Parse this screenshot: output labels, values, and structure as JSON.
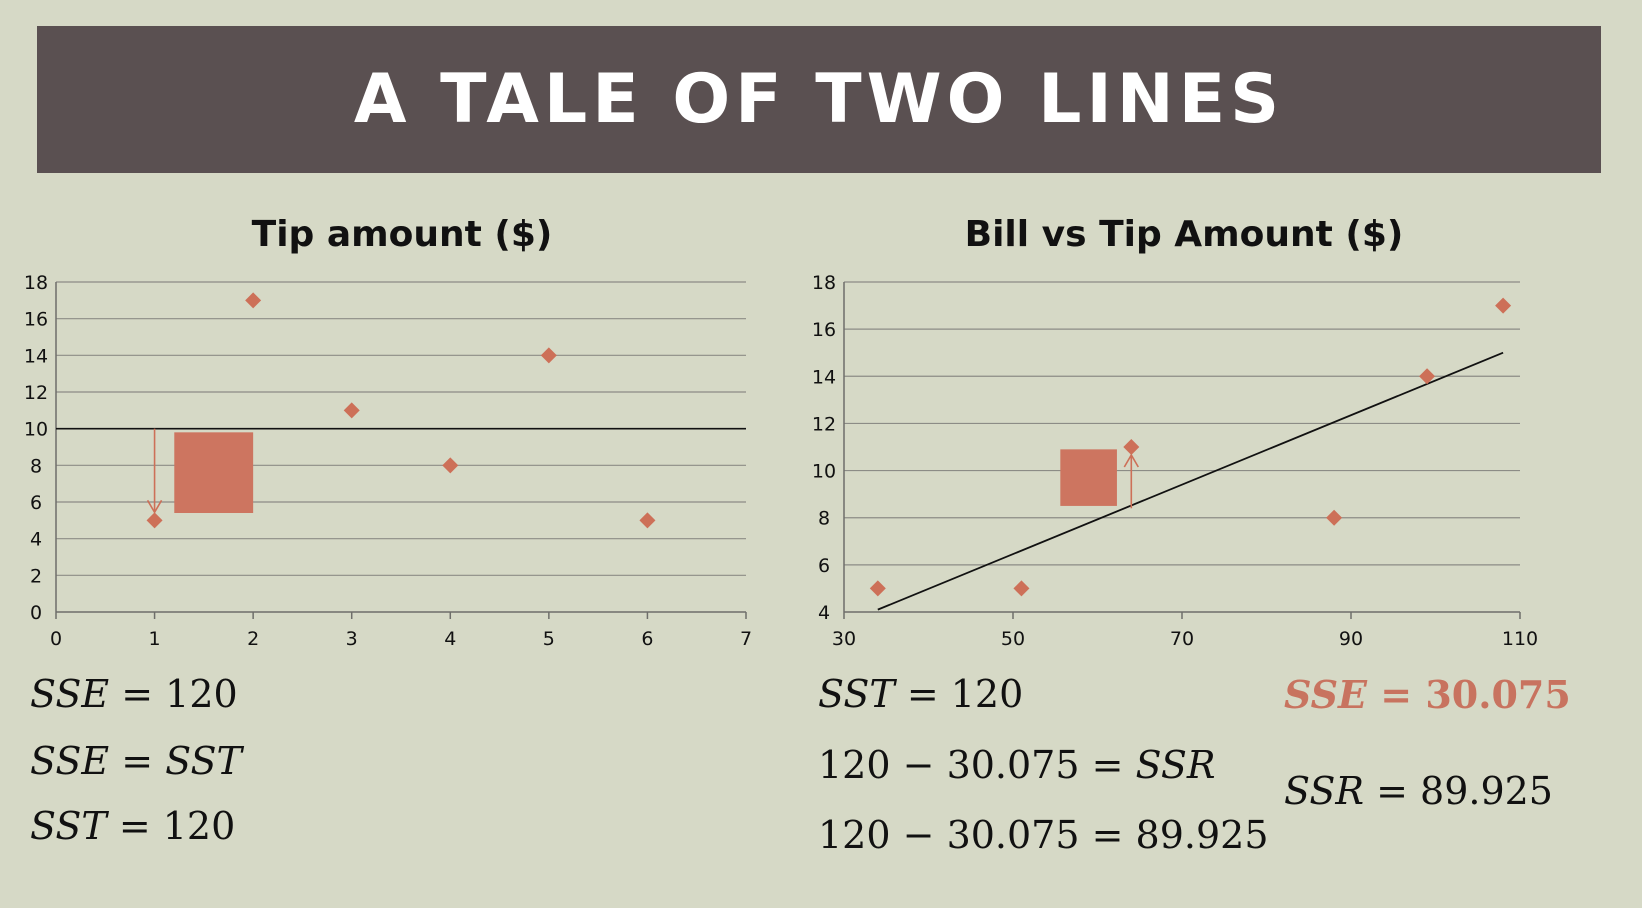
{
  "slide_title": "A TALE OF TWO LINES",
  "colors": {
    "marker": "#cd7058",
    "square": "#cd7560",
    "line": "#111111",
    "banner": "#5a5051",
    "highlight": "#c8735f"
  },
  "chart_data": [
    {
      "type": "scatter",
      "title": "Tip amount ($)",
      "x": [
        1,
        2,
        3,
        4,
        5,
        6
      ],
      "y": [
        5,
        17,
        11,
        8,
        14,
        5
      ],
      "xlim": [
        0,
        7
      ],
      "ylim": [
        0,
        18
      ],
      "xticks": [
        0,
        1,
        2,
        3,
        4,
        5,
        6,
        7
      ],
      "yticks": [
        0,
        2,
        4,
        6,
        8,
        10,
        12,
        14,
        16,
        18
      ],
      "grid": true,
      "reference_line": {
        "y": 10
      },
      "residual_arrow": {
        "x": 1,
        "from_y": 10,
        "to_y": 5
      },
      "residual_square": {
        "x0": 1.2,
        "x1": 2.0,
        "y0": 5.4,
        "y1": 9.8
      }
    },
    {
      "type": "scatter",
      "title": "Bill vs Tip Amount ($)",
      "x": [
        34,
        51,
        64,
        88,
        99,
        108
      ],
      "y": [
        5,
        5,
        11,
        8,
        14,
        17
      ],
      "xlim": [
        30,
        110
      ],
      "ylim": [
        4,
        18
      ],
      "xticks": [
        30,
        50,
        70,
        90,
        110
      ],
      "yticks": [
        4,
        6,
        8,
        10,
        12,
        14,
        16,
        18
      ],
      "grid": true,
      "fit_line": {
        "x0": 34,
        "y0": 4.1,
        "x1": 108,
        "y1": 15.0
      },
      "residual_arrow": {
        "x": 64,
        "from_y": 8.4,
        "to_y": 11
      },
      "residual_square": {
        "x0": 55.6,
        "x1": 62.3,
        "y0": 8.5,
        "y1": 10.9
      }
    }
  ],
  "equations": {
    "left": [
      {
        "lhs": "SSE",
        "rhs": "120"
      },
      {
        "lhs": "SSE",
        "rhs": "SST"
      },
      {
        "lhs": "SST",
        "rhs": "120"
      }
    ],
    "right": {
      "sst": {
        "lhs": "SST",
        "rhs": "120"
      },
      "step1": {
        "a": "120",
        "op": "−",
        "b": "30.075",
        "rhs": "SSR"
      },
      "step2": {
        "a": "120",
        "op": "−",
        "b": "30.075",
        "rhs": "89.925"
      },
      "sse": {
        "lhs": "SSE",
        "rhs": "30.075"
      },
      "ssr": {
        "lhs": "SSR",
        "rhs": "89.925"
      }
    }
  }
}
